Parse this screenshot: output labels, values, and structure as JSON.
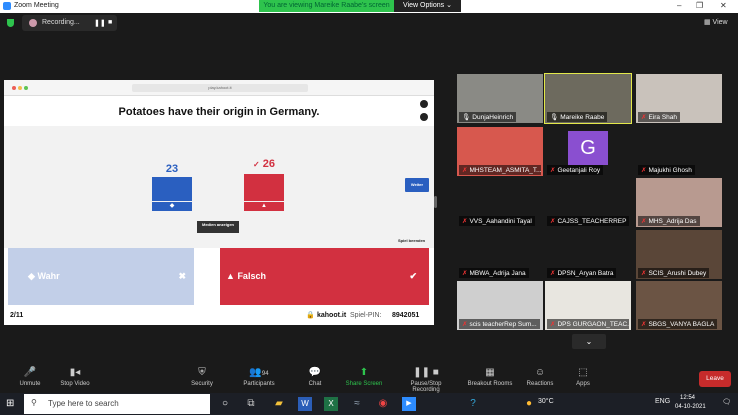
{
  "window": {
    "title": "Zoom Meeting",
    "viewing_banner": "You are viewing Mareike Raabe's screen",
    "view_options": "View Options ⌄",
    "minimize": "–",
    "restore": "❐",
    "close": "✕"
  },
  "topbar": {
    "recording": "Recording...",
    "pause": "❚❚",
    "stop": "■",
    "view": "▦ View"
  },
  "share": {
    "url": "play.kahoot.it",
    "question": "Potatoes have their origin in Germany.",
    "weiter": "Weiter",
    "results": [
      {
        "count": "23",
        "color": "#2a5fc0",
        "shape": "◆",
        "check": ""
      },
      {
        "count": "26",
        "color": "#d23040",
        "shape": "▲",
        "check": "✓"
      }
    ],
    "medien": "Medien anzeigen",
    "spiel_beenden": "Spiel beenden",
    "answers": [
      {
        "label": "Wahr",
        "shape": "◆",
        "mark": "✖",
        "color": "#c2cfe8"
      },
      {
        "label": "Falsch",
        "shape": "▲",
        "mark": "✔",
        "color": "#d23040"
      }
    ],
    "progress": "2/11",
    "site": "kahoot.it",
    "pin_label": "Spiel-PIN:",
    "pin": "8942051"
  },
  "gallery": [
    {
      "name": "DunjaHeinrich",
      "bg": "#8a8a85",
      "muted": false
    },
    {
      "name": "Mareike Raabe",
      "bg": "#6d6a5e",
      "muted": false,
      "active": true
    },
    {
      "name": "Eira Shah",
      "bg": "#c9c2bb",
      "muted": true
    },
    {
      "name": "MHSTEAM_ASMITA_T...",
      "bg": "#d7584e",
      "muted": true
    },
    {
      "name": "Geetanjali Roy",
      "bg": "#1a1a1a",
      "muted": true,
      "initial": "G"
    },
    {
      "name": "Majukhi Ghosh",
      "bg": "#1a1a1a",
      "muted": true
    },
    {
      "name": "VVS_Aahandini Tayal",
      "bg": "#1a1a1a",
      "muted": true
    },
    {
      "name": "CAJSS_TEACHERREP",
      "bg": "#1a1a1a",
      "muted": true
    },
    {
      "name": "MHS_Adrija Das",
      "bg": "#b89a90",
      "muted": true
    },
    {
      "name": "MBWA_Adrija Jana",
      "bg": "#1a1a1a",
      "muted": true
    },
    {
      "name": "DPSN_Aryan Batra",
      "bg": "#1a1a1a",
      "muted": true
    },
    {
      "name": "SCIS_Arushi Dubey",
      "bg": "#5a4638",
      "muted": true
    },
    {
      "name": "scis teacherRep Sum...",
      "bg": "#cfcfcf",
      "muted": true
    },
    {
      "name": "DPS GURGAON_TEAC...",
      "bg": "#e8e6e0",
      "muted": true
    },
    {
      "name": "SBGS_VANYA BAGLA",
      "bg": "#6b5444",
      "muted": true
    }
  ],
  "gallery_next": "⌄",
  "controls": [
    {
      "label": "Unmute",
      "icon": "🎤"
    },
    {
      "label": "Stop Video",
      "icon": "▮◂"
    },
    {
      "label": "Security",
      "icon": "⛨"
    },
    {
      "label": "Participants",
      "icon": "👥",
      "badge": "94"
    },
    {
      "label": "Chat",
      "icon": "💬"
    },
    {
      "label": "Share Screen",
      "icon": "⬆"
    },
    {
      "label": "Pause/Stop Recording",
      "icon": "❚❚ ■"
    },
    {
      "label": "Breakout Rooms",
      "icon": "▦"
    },
    {
      "label": "Reactions",
      "icon": "☺"
    },
    {
      "label": "Apps",
      "icon": "⬚"
    }
  ],
  "leave": "Leave",
  "taskbar": {
    "search_placeholder": "Type here to search",
    "weather": "30°C",
    "lang": "ENG",
    "time": "12:54",
    "date": "04-10-2021"
  }
}
